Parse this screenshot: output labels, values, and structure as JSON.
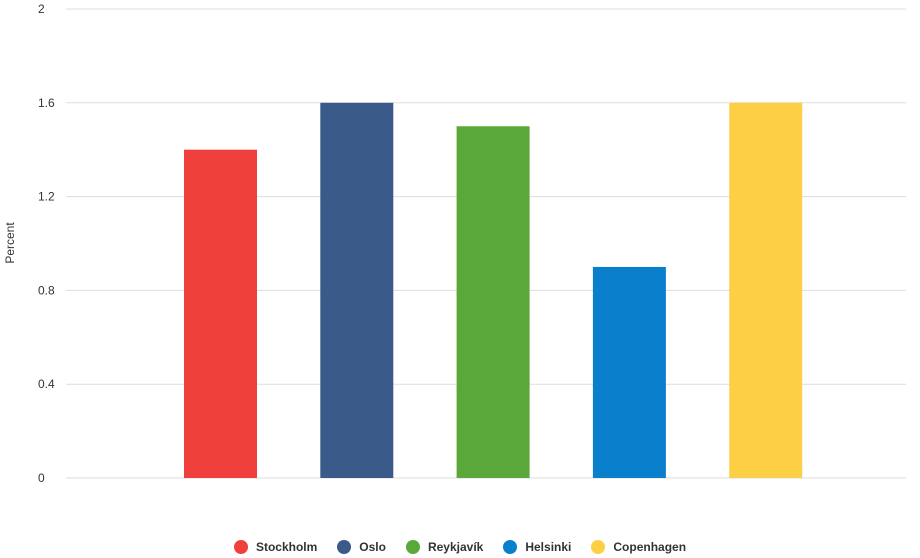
{
  "chart_data": {
    "type": "bar",
    "title": "",
    "xlabel": "",
    "ylabel": "Percent",
    "ylim": [
      0,
      2
    ],
    "yticks": [
      "0",
      "0.4",
      "0.8",
      "1.2",
      "1.6",
      "2"
    ],
    "ytick_values": [
      0,
      0.4,
      0.8,
      1.2,
      1.6,
      2
    ],
    "grid": true,
    "legend_position": "bottom",
    "categories": [
      "Stockholm",
      "Oslo",
      "Reykjavík",
      "Helsinki",
      "Copenhagen"
    ],
    "values": [
      1.4,
      1.6,
      1.5,
      0.9,
      1.6
    ],
    "colors": [
      "#ef403c",
      "#3a5a8a",
      "#5aa83a",
      "#0a80cd",
      "#fdcf44"
    ]
  }
}
